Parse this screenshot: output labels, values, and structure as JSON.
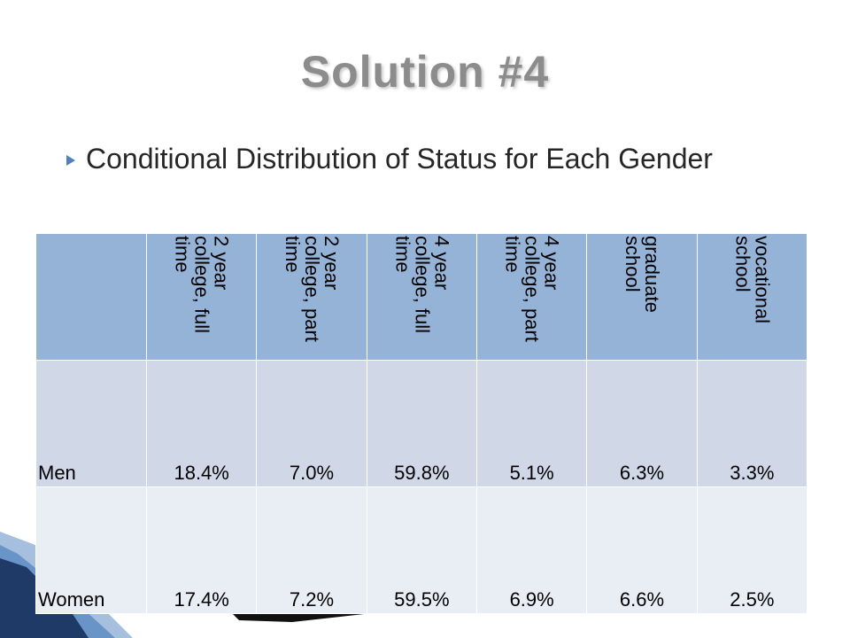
{
  "title": "Solution #4",
  "bullet": "Conditional Distribution of Status for Each Gender",
  "table": {
    "columns": [
      "2 year college, full time",
      "2 year college, part time",
      "4 year college, full time",
      "4 year college, part time",
      "graduate school",
      "vocational school"
    ],
    "rows": [
      [
        "Men",
        "18.4%",
        "7.0%",
        "59.8%",
        "5.1%",
        "6.3%",
        "3.3%"
      ],
      [
        "Women",
        "17.4%",
        "7.2%",
        "59.5%",
        "6.9%",
        "6.6%",
        "2.5%"
      ]
    ]
  }
}
